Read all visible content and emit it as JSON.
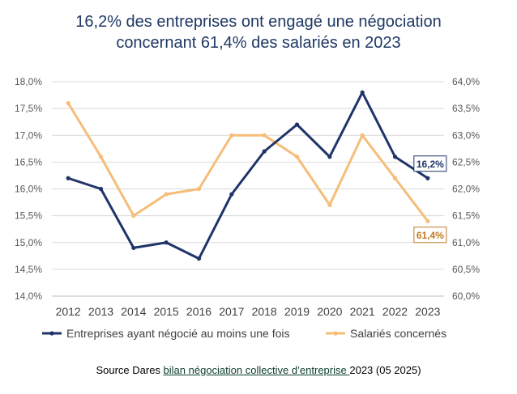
{
  "chart_data": {
    "type": "line",
    "title_line1": "16,2% des entreprises ont engagé une négociation",
    "title_line2": "concernant 61,4% des salariés en 2023",
    "categories": [
      "2012",
      "2013",
      "2014",
      "2015",
      "2016",
      "2017",
      "2018",
      "2019",
      "2020",
      "2021",
      "2022",
      "2023"
    ],
    "y_left": {
      "ticks": [
        "18,0%",
        "17,5%",
        "17,0%",
        "16,5%",
        "16,0%",
        "15,5%",
        "15,0%",
        "14,5%",
        "14,0%"
      ],
      "ylim": [
        14.0,
        18.0
      ]
    },
    "y_right": {
      "ticks": [
        "64,0%",
        "63,5%",
        "63,0%",
        "62,5%",
        "62,0%",
        "61,5%",
        "61,0%",
        "60,5%",
        "60,0%"
      ],
      "ylim": [
        60.0,
        64.0
      ]
    },
    "grid": true,
    "legend_position": "bottom",
    "series": [
      {
        "name": "Entreprises ayant négocié au moins une fois",
        "axis": "left",
        "color": "#1f3468",
        "values": [
          16.2,
          16.0,
          14.9,
          15.0,
          14.7,
          15.9,
          16.7,
          17.2,
          16.6,
          17.8,
          16.6,
          16.2
        ],
        "end_label": "16,2%"
      },
      {
        "name": "Salariés concernés",
        "axis": "right",
        "color": "#f6bd79",
        "values": [
          63.6,
          62.6,
          61.5,
          61.9,
          62.0,
          63.0,
          63.0,
          62.6,
          61.7,
          63.0,
          62.2,
          61.4
        ],
        "end_label": "61,4%"
      }
    ]
  },
  "source": {
    "prefix": "Source Dares ",
    "link": "bilan négociation collective d’entreprise ",
    "suffix": "2023 (05 2025)"
  }
}
